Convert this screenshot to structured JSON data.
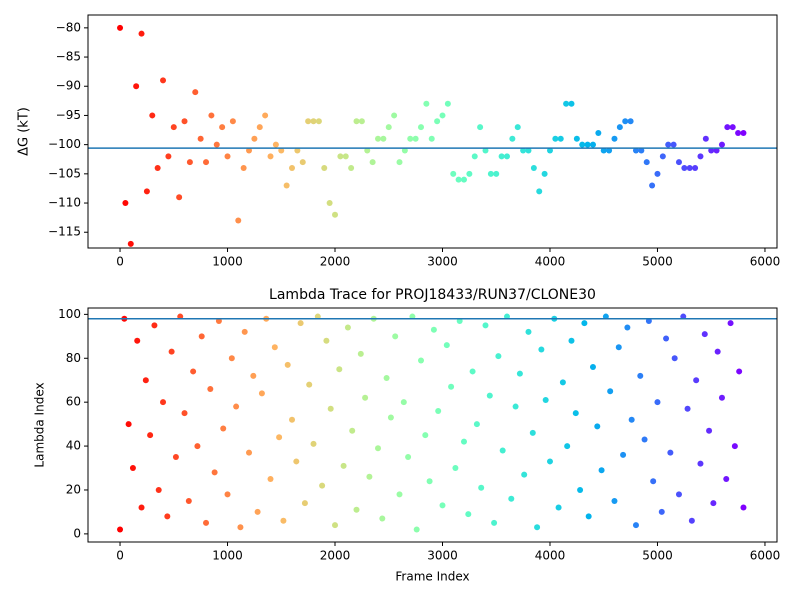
{
  "chart_data": [
    {
      "type": "scatter",
      "ylabel": "ΔG (kT)",
      "colormap": "rainbow_r",
      "hline": -100.6,
      "hline_color": "#1f77b4",
      "xlim": [
        -298,
        6112
      ],
      "ylim": [
        -117.7,
        -77.8
      ],
      "xticks": [
        0,
        1000,
        2000,
        3000,
        4000,
        5000,
        6000
      ],
      "yticks": [
        {
          "value": -80,
          "label": "−80"
        },
        {
          "value": -85,
          "label": "−85"
        },
        {
          "value": -90,
          "label": "−90"
        },
        {
          "value": -95,
          "label": "−95"
        },
        {
          "value": -100,
          "label": "−100"
        },
        {
          "value": -105,
          "label": "−105"
        },
        {
          "value": -110,
          "label": "−110"
        },
        {
          "value": -115,
          "label": "−115"
        }
      ],
      "x": [
        0,
        50,
        100,
        150,
        200,
        250,
        300,
        350,
        400,
        450,
        500,
        550,
        600,
        650,
        700,
        750,
        800,
        850,
        900,
        950,
        1000,
        1050,
        1100,
        1150,
        1200,
        1250,
        1300,
        1350,
        1400,
        1450,
        1500,
        1550,
        1600,
        1650,
        1700,
        1750,
        1800,
        1850,
        1900,
        1950,
        2000,
        2050,
        2100,
        2150,
        2200,
        2250,
        2300,
        2350,
        2400,
        2450,
        2500,
        2550,
        2600,
        2650,
        2700,
        2750,
        2800,
        2850,
        2900,
        2950,
        3000,
        3050,
        3100,
        3150,
        3200,
        3250,
        3300,
        3350,
        3400,
        3450,
        3500,
        3550,
        3600,
        3650,
        3700,
        3750,
        3800,
        3850,
        3900,
        3950,
        4000,
        4050,
        4100,
        4150,
        4200,
        4250,
        4300,
        4350,
        4400,
        4450,
        4500,
        4550,
        4600,
        4650,
        4700,
        4750,
        4800,
        4850,
        4900,
        4950,
        5000,
        5050,
        5100,
        5150,
        5200,
        5250,
        5300,
        5350,
        5400,
        5450,
        5500,
        5550,
        5600,
        5650,
        5700,
        5750,
        5800
      ],
      "values": [
        -80,
        -110,
        -117,
        -90,
        -81,
        -108,
        -95,
        -104,
        -89,
        -102,
        -97,
        -109,
        -96,
        -103,
        -91,
        -99,
        -103,
        -95,
        -100,
        -97,
        -102,
        -96,
        -113,
        -104,
        -101,
        -99,
        -97,
        -95,
        -102,
        -100,
        -101,
        -107,
        -104,
        -101,
        -103,
        -96,
        -96,
        -96,
        -104,
        -110,
        -112,
        -102,
        -102,
        -104,
        -96,
        -96,
        -101,
        -103,
        -99,
        -99,
        -97,
        -95,
        -103,
        -101,
        -99,
        -99,
        -97,
        -93,
        -99,
        -96,
        -95,
        -93,
        -105,
        -106,
        -106,
        -105,
        -102,
        -97,
        -101,
        -105,
        -105,
        -102,
        -102,
        -99,
        -97,
        -101,
        -101,
        -104,
        -108,
        -105,
        -101,
        -99,
        -99,
        -93,
        -93,
        -99,
        -100,
        -100,
        -100,
        -98,
        -101,
        -101,
        -99,
        -97,
        -96,
        -96,
        -101,
        -101,
        -103,
        -107,
        -105,
        -102,
        -100,
        -100,
        -103,
        -104,
        -104,
        -104,
        -102,
        -99,
        -101,
        -101,
        -100,
        -97,
        -97,
        -98,
        -98
      ]
    },
    {
      "type": "scatter",
      "title": "Lambda Trace for PROJ18433/RUN37/CLONE30",
      "xlabel": "Frame Index",
      "ylabel": "Lambda Index",
      "colormap": "rainbow_r",
      "hline": 98,
      "hline_color": "#1f77b4",
      "xlim": [
        -298,
        6112
      ],
      "ylim": [
        -3.7,
        102.9
      ],
      "xticks": [
        0,
        1000,
        2000,
        3000,
        4000,
        5000,
        6000
      ],
      "yticks": [
        0,
        20,
        40,
        60,
        80,
        100
      ],
      "x": [
        0,
        40,
        80,
        120,
        160,
        200,
        240,
        280,
        320,
        360,
        400,
        440,
        480,
        520,
        560,
        600,
        640,
        680,
        720,
        760,
        800,
        840,
        880,
        920,
        960,
        1000,
        1040,
        1080,
        1120,
        1160,
        1200,
        1240,
        1280,
        1320,
        1360,
        1400,
        1440,
        1480,
        1520,
        1560,
        1600,
        1640,
        1680,
        1720,
        1760,
        1800,
        1840,
        1880,
        1920,
        1960,
        2000,
        2040,
        2080,
        2120,
        2160,
        2200,
        2240,
        2280,
        2320,
        2360,
        2400,
        2440,
        2480,
        2520,
        2560,
        2600,
        2640,
        2680,
        2720,
        2760,
        2800,
        2840,
        2880,
        2920,
        2960,
        3000,
        3040,
        3080,
        3120,
        3160,
        3200,
        3240,
        3280,
        3320,
        3360,
        3400,
        3440,
        3480,
        3520,
        3560,
        3600,
        3640,
        3680,
        3720,
        3760,
        3800,
        3840,
        3880,
        3920,
        3960,
        4000,
        4040,
        4080,
        4120,
        4160,
        4200,
        4240,
        4280,
        4320,
        4360,
        4400,
        4440,
        4480,
        4520,
        4560,
        4600,
        4640,
        4680,
        4720,
        4760,
        4800,
        4840,
        4880,
        4920,
        4960,
        5000,
        5040,
        5080,
        5120,
        5160,
        5200,
        5240,
        5280,
        5320,
        5360,
        5400,
        5440,
        5480,
        5520,
        5560,
        5600,
        5640,
        5680,
        5720,
        5760,
        5800
      ],
      "values": [
        2,
        98,
        50,
        30,
        88,
        12,
        70,
        45,
        95,
        20,
        60,
        8,
        83,
        35,
        99,
        55,
        15,
        74,
        40,
        90,
        5,
        66,
        28,
        97,
        48,
        18,
        80,
        58,
        3,
        92,
        37,
        72,
        10,
        64,
        98,
        25,
        85,
        44,
        6,
        77,
        52,
        33,
        96,
        14,
        68,
        41,
        99,
        22,
        88,
        57,
        4,
        75,
        31,
        94,
        47,
        11,
        82,
        62,
        26,
        98,
        39,
        7,
        71,
        53,
        90,
        18,
        60,
        35,
        99,
        2,
        79,
        45,
        24,
        93,
        56,
        13,
        86,
        67,
        30,
        97,
        42,
        9,
        74,
        50,
        21,
        95,
        63,
        5,
        81,
        38,
        99,
        16,
        58,
        73,
        27,
        92,
        46,
        3,
        84,
        61,
        33,
        98,
        12,
        69,
        40,
        88,
        55,
        20,
        96,
        8,
        76,
        49,
        29,
        99,
        65,
        15,
        85,
        36,
        94,
        52,
        4,
        72,
        43,
        97,
        24,
        60,
        10,
        89,
        37,
        80,
        18,
        99,
        57,
        6,
        70,
        32,
        91,
        47,
        14,
        83,
        62,
        25,
        96,
        40,
        74,
        12
      ]
    }
  ]
}
